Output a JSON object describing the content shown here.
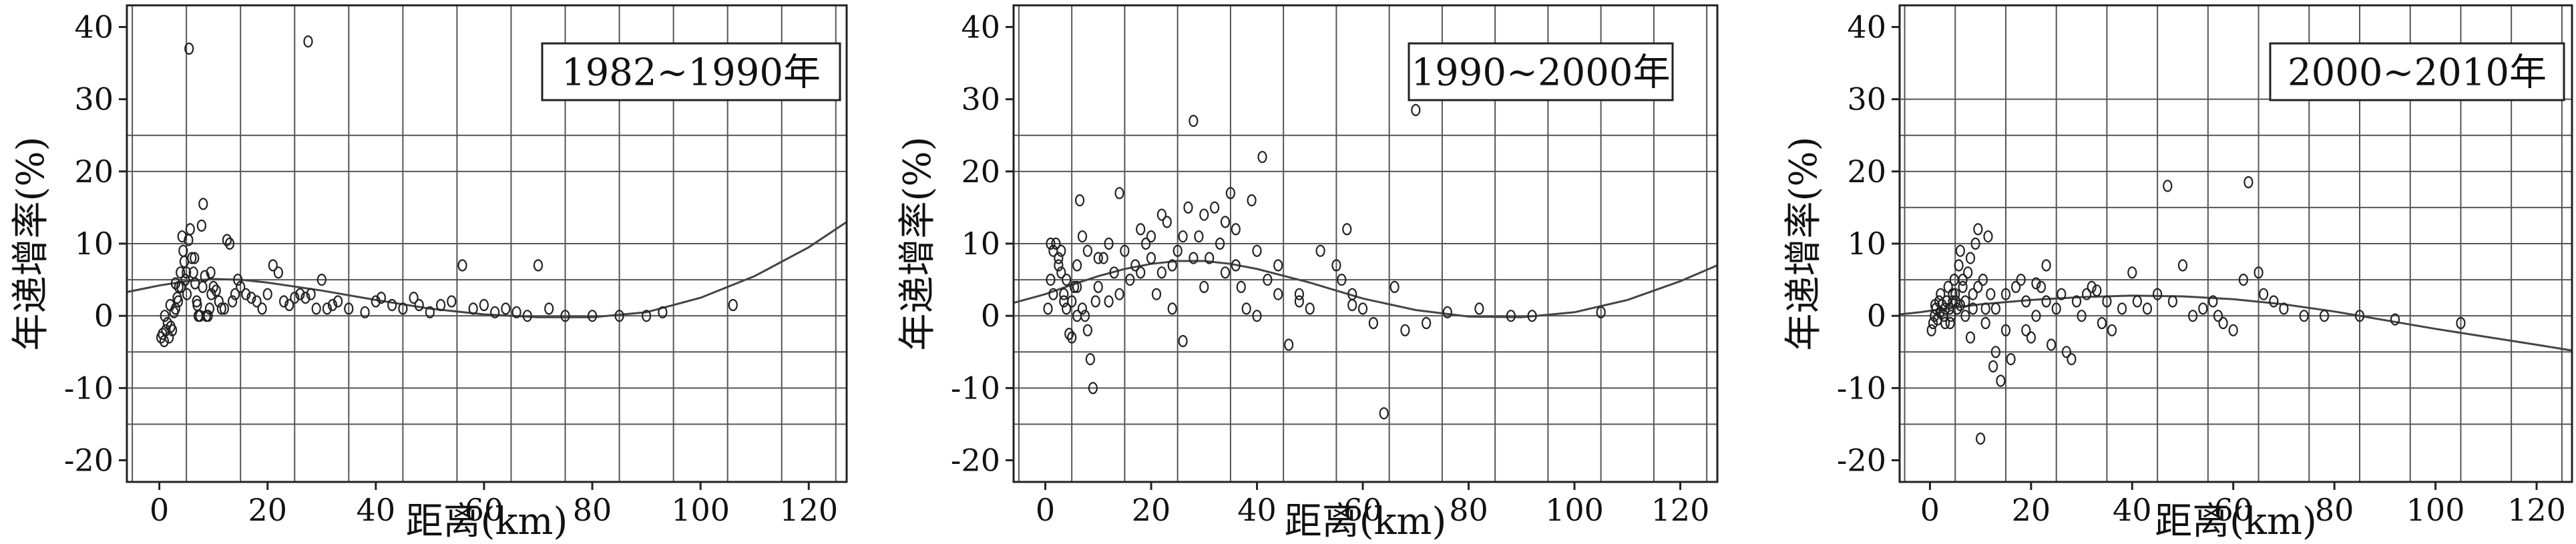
{
  "chart_data": [
    {
      "type": "scatter",
      "legend_label": "1982~1990年",
      "xlabel": "距离(km)",
      "ylabel": "年递增率(%)",
      "xlim": [
        -6,
        127
      ],
      "ylim": [
        -23,
        43
      ],
      "xticks": [
        0,
        20,
        40,
        60,
        80,
        100,
        120
      ],
      "yticks": [
        -20,
        -10,
        0,
        10,
        20,
        30,
        40
      ],
      "x_grid": [
        -5,
        5,
        15,
        25,
        35,
        45,
        55,
        65,
        75,
        85,
        95,
        105,
        115,
        125
      ],
      "y_grid": [
        -15,
        -10,
        -5,
        0,
        5,
        10,
        20,
        25
      ],
      "points": [
        [
          0.3,
          -3
        ],
        [
          0.6,
          -2.5
        ],
        [
          0.9,
          -3.5
        ],
        [
          1.2,
          -2
        ],
        [
          1.5,
          -1
        ],
        [
          1.8,
          -3
        ],
        [
          2.1,
          -1.5
        ],
        [
          2.4,
          -2
        ],
        [
          2.7,
          0.5
        ],
        [
          3,
          1
        ],
        [
          3.3,
          2.5
        ],
        [
          3.6,
          4
        ],
        [
          3.9,
          6
        ],
        [
          4.2,
          11
        ],
        [
          4.4,
          9
        ],
        [
          4.6,
          7.5
        ],
        [
          4.8,
          5
        ],
        [
          5.1,
          3
        ],
        [
          5.4,
          10.5
        ],
        [
          5.7,
          12
        ],
        [
          6,
          8
        ],
        [
          6.3,
          6
        ],
        [
          6.6,
          4.5
        ],
        [
          6.9,
          2
        ],
        [
          7.2,
          0
        ],
        [
          7.5,
          0
        ],
        [
          7.8,
          12.5
        ],
        [
          8.1,
          15.5
        ],
        [
          8.4,
          5.5
        ],
        [
          8.7,
          0
        ],
        [
          9,
          0
        ],
        [
          9.3,
          1
        ],
        [
          9.6,
          3
        ],
        [
          10,
          4
        ],
        [
          10.5,
          3.5
        ],
        [
          11,
          2
        ],
        [
          11.5,
          1
        ],
        [
          12,
          1
        ],
        [
          12.5,
          10.5
        ],
        [
          13,
          10
        ],
        [
          13.5,
          2
        ],
        [
          14,
          3
        ],
        [
          14.5,
          5
        ],
        [
          15,
          4
        ],
        [
          16,
          3
        ],
        [
          17,
          2.5
        ],
        [
          18,
          2
        ],
        [
          19,
          1
        ],
        [
          20,
          3
        ],
        [
          21,
          7
        ],
        [
          22,
          6
        ],
        [
          23,
          2
        ],
        [
          24,
          1.5
        ],
        [
          25,
          2.5
        ],
        [
          26,
          3
        ],
        [
          27,
          2.5
        ],
        [
          28,
          3
        ],
        [
          29,
          1
        ],
        [
          30,
          5
        ],
        [
          31,
          1
        ],
        [
          32,
          1.5
        ],
        [
          33,
          2
        ],
        [
          35,
          1
        ],
        [
          38,
          0.5
        ],
        [
          40,
          2
        ],
        [
          41,
          2.5
        ],
        [
          43,
          1.5
        ],
        [
          45,
          1
        ],
        [
          47,
          2.5
        ],
        [
          48,
          1.5
        ],
        [
          50,
          0.5
        ],
        [
          52,
          1.5
        ],
        [
          54,
          2
        ],
        [
          56,
          7
        ],
        [
          58,
          1
        ],
        [
          60,
          1.5
        ],
        [
          62,
          0.5
        ],
        [
          64,
          1
        ],
        [
          66,
          0.5
        ],
        [
          68,
          0
        ],
        [
          70,
          7
        ],
        [
          72,
          1
        ],
        [
          75,
          0
        ],
        [
          80,
          0
        ],
        [
          85,
          0
        ],
        [
          90,
          0
        ],
        [
          93,
          0.5
        ],
        [
          106,
          1.5
        ],
        [
          5.5,
          37
        ],
        [
          27.5,
          38
        ],
        [
          3,
          4.5
        ],
        [
          5,
          6
        ],
        [
          6.5,
          8
        ],
        [
          8,
          4
        ],
        [
          4,
          4
        ],
        [
          2,
          1.5
        ],
        [
          1,
          0
        ],
        [
          3.5,
          2
        ],
        [
          7,
          1.5
        ],
        [
          9.5,
          6
        ]
      ],
      "trend": [
        [
          -6,
          3.3
        ],
        [
          -2,
          3.9
        ],
        [
          0,
          4.2
        ],
        [
          5,
          4.8
        ],
        [
          10,
          5.1
        ],
        [
          15,
          5.0
        ],
        [
          20,
          4.6
        ],
        [
          30,
          3.5
        ],
        [
          40,
          2.2
        ],
        [
          50,
          1.0
        ],
        [
          60,
          0.2
        ],
        [
          70,
          -0.2
        ],
        [
          80,
          -0.2
        ],
        [
          90,
          0.5
        ],
        [
          100,
          2.5
        ],
        [
          110,
          5.5
        ],
        [
          120,
          9.5
        ],
        [
          127,
          13
        ]
      ]
    },
    {
      "type": "scatter",
      "legend_label": "1990~2000年",
      "xlabel": "距离(km)",
      "ylabel": "年递增率(%)",
      "xlim": [
        -6,
        127
      ],
      "ylim": [
        -23,
        43
      ],
      "xticks": [
        0,
        20,
        40,
        60,
        80,
        100,
        120
      ],
      "yticks": [
        -20,
        -10,
        0,
        10,
        20,
        30,
        40
      ],
      "x_grid": [
        -5,
        5,
        15,
        25,
        35,
        45,
        55,
        65,
        75,
        85,
        95,
        105,
        115,
        125
      ],
      "y_grid": [
        -15,
        -10,
        -5,
        0,
        5,
        10,
        20,
        25
      ],
      "points": [
        [
          0.5,
          1
        ],
        [
          1,
          5
        ],
        [
          1.5,
          3
        ],
        [
          2,
          10
        ],
        [
          2.5,
          8
        ],
        [
          3,
          6
        ],
        [
          3.5,
          2
        ],
        [
          4,
          1
        ],
        [
          4.5,
          -2.5
        ],
        [
          5,
          -3
        ],
        [
          5.5,
          4
        ],
        [
          6,
          7
        ],
        [
          6.5,
          16
        ],
        [
          7,
          11
        ],
        [
          7.5,
          0
        ],
        [
          8,
          -2
        ],
        [
          8.5,
          -6
        ],
        [
          9,
          -10
        ],
        [
          9.5,
          2
        ],
        [
          10,
          4
        ],
        [
          11,
          8
        ],
        [
          12,
          10
        ],
        [
          13,
          6
        ],
        [
          14,
          17
        ],
        [
          15,
          9
        ],
        [
          16,
          5
        ],
        [
          17,
          7
        ],
        [
          18,
          12
        ],
        [
          19,
          10
        ],
        [
          20,
          8
        ],
        [
          21,
          3
        ],
        [
          22,
          6
        ],
        [
          23,
          13
        ],
        [
          24,
          1
        ],
        [
          25,
          9
        ],
        [
          26,
          -3.5
        ],
        [
          27,
          15
        ],
        [
          28,
          27
        ],
        [
          29,
          11
        ],
        [
          30,
          4
        ],
        [
          31,
          8
        ],
        [
          32,
          15
        ],
        [
          33,
          10
        ],
        [
          34,
          6
        ],
        [
          35,
          17
        ],
        [
          36,
          12
        ],
        [
          37,
          4
        ],
        [
          38,
          1
        ],
        [
          39,
          16
        ],
        [
          40,
          0
        ],
        [
          41,
          22
        ],
        [
          42,
          5
        ],
        [
          44,
          3
        ],
        [
          46,
          -4
        ],
        [
          48,
          3
        ],
        [
          50,
          1
        ],
        [
          52,
          9
        ],
        [
          55,
          7
        ],
        [
          57,
          12
        ],
        [
          58,
          3
        ],
        [
          60,
          1
        ],
        [
          62,
          -1
        ],
        [
          64,
          -13.5
        ],
        [
          66,
          4
        ],
        [
          68,
          -2
        ],
        [
          70,
          28.5
        ],
        [
          72,
          -1
        ],
        [
          76,
          0.5
        ],
        [
          82,
          1
        ],
        [
          88,
          0
        ],
        [
          92,
          0
        ],
        [
          105,
          0.5
        ],
        [
          3,
          9
        ],
        [
          4,
          5
        ],
        [
          5,
          2
        ],
        [
          6,
          0
        ],
        [
          7,
          1
        ],
        [
          10,
          8
        ],
        [
          12,
          2
        ],
        [
          14,
          3
        ],
        [
          18,
          6
        ],
        [
          20,
          11
        ],
        [
          22,
          14
        ],
        [
          24,
          7
        ],
        [
          26,
          11
        ],
        [
          28,
          8
        ],
        [
          30,
          14
        ],
        [
          34,
          13
        ],
        [
          36,
          7
        ],
        [
          40,
          9
        ],
        [
          44,
          7
        ],
        [
          48,
          2
        ],
        [
          56,
          5
        ],
        [
          58,
          1.5
        ],
        [
          1.5,
          9
        ],
        [
          2.5,
          7
        ],
        [
          3.5,
          3
        ],
        [
          1,
          10
        ],
        [
          6,
          4
        ],
        [
          8,
          9
        ]
      ],
      "trend": [
        [
          -6,
          1.8
        ],
        [
          -2,
          2.6
        ],
        [
          0,
          3.0
        ],
        [
          5,
          4.3
        ],
        [
          10,
          5.5
        ],
        [
          15,
          6.5
        ],
        [
          20,
          7.2
        ],
        [
          25,
          7.6
        ],
        [
          30,
          7.6
        ],
        [
          35,
          7.2
        ],
        [
          40,
          6.5
        ],
        [
          50,
          4.6
        ],
        [
          60,
          2.4
        ],
        [
          70,
          0.8
        ],
        [
          80,
          -0.1
        ],
        [
          90,
          -0.2
        ],
        [
          100,
          0.5
        ],
        [
          110,
          2.2
        ],
        [
          120,
          4.8
        ],
        [
          127,
          7
        ]
      ]
    },
    {
      "type": "scatter",
      "legend_label": "2000~2010年",
      "xlabel": "距离(km)",
      "ylabel": "年递增率(%)",
      "xlim": [
        -6,
        127
      ],
      "ylim": [
        -23,
        43
      ],
      "xticks": [
        0,
        20,
        40,
        60,
        80,
        100,
        120
      ],
      "yticks": [
        -20,
        -10,
        0,
        10,
        20,
        30,
        40
      ],
      "x_grid": [
        -5,
        5,
        15,
        25,
        35,
        45,
        55,
        65,
        75,
        85,
        95,
        105,
        115,
        125
      ],
      "y_grid": [
        -15,
        -10,
        -5,
        0,
        5,
        10,
        15,
        20,
        25,
        30
      ],
      "points": [
        [
          0.3,
          -2
        ],
        [
          0.6,
          -1
        ],
        [
          0.9,
          0
        ],
        [
          1.2,
          1
        ],
        [
          1.5,
          -0.5
        ],
        [
          1.8,
          2
        ],
        [
          2.1,
          3
        ],
        [
          2.4,
          1.5
        ],
        [
          2.7,
          0
        ],
        [
          3,
          -1
        ],
        [
          3.3,
          2
        ],
        [
          3.6,
          4
        ],
        [
          3.9,
          1
        ],
        [
          4.2,
          0
        ],
        [
          4.5,
          3
        ],
        [
          4.8,
          5
        ],
        [
          5.1,
          2
        ],
        [
          5.4,
          1
        ],
        [
          5.7,
          7
        ],
        [
          6,
          9
        ],
        [
          6.5,
          4
        ],
        [
          7,
          2
        ],
        [
          7.5,
          6
        ],
        [
          8,
          8
        ],
        [
          8.5,
          3
        ],
        [
          9,
          10
        ],
        [
          9.5,
          12
        ],
        [
          10,
          -17
        ],
        [
          10.5,
          5
        ],
        [
          11,
          1
        ],
        [
          11.5,
          11
        ],
        [
          12,
          3
        ],
        [
          12.5,
          -7
        ],
        [
          13,
          -5
        ],
        [
          14,
          -9
        ],
        [
          15,
          -2
        ],
        [
          16,
          -6
        ],
        [
          17,
          4
        ],
        [
          18,
          5
        ],
        [
          19,
          2
        ],
        [
          20,
          -3
        ],
        [
          21,
          0
        ],
        [
          22,
          4
        ],
        [
          23,
          7
        ],
        [
          24,
          -4
        ],
        [
          25,
          1
        ],
        [
          26,
          3
        ],
        [
          27,
          -5
        ],
        [
          28,
          -6
        ],
        [
          29,
          2
        ],
        [
          30,
          0
        ],
        [
          31,
          3
        ],
        [
          32,
          4
        ],
        [
          33,
          3.5
        ],
        [
          34,
          -1
        ],
        [
          35,
          2
        ],
        [
          36,
          -2
        ],
        [
          38,
          1
        ],
        [
          40,
          6
        ],
        [
          41,
          2
        ],
        [
          43,
          1
        ],
        [
          45,
          3
        ],
        [
          47,
          18
        ],
        [
          48,
          2
        ],
        [
          50,
          7
        ],
        [
          52,
          0
        ],
        [
          54,
          1
        ],
        [
          56,
          2
        ],
        [
          57,
          0
        ],
        [
          58,
          -1
        ],
        [
          60,
          -2
        ],
        [
          62,
          5
        ],
        [
          63,
          18.5
        ],
        [
          65,
          6
        ],
        [
          66,
          3
        ],
        [
          68,
          2
        ],
        [
          70,
          1
        ],
        [
          74,
          0
        ],
        [
          78,
          0
        ],
        [
          85,
          0
        ],
        [
          92,
          -0.5
        ],
        [
          105,
          -1
        ],
        [
          4,
          -1
        ],
        [
          5,
          3
        ],
        [
          6,
          1.5
        ],
        [
          7,
          0
        ],
        [
          8,
          -3
        ],
        [
          3,
          1
        ],
        [
          2,
          0.5
        ],
        [
          1,
          1.5
        ],
        [
          4.5,
          2
        ],
        [
          6.5,
          5
        ],
        [
          8.5,
          1
        ],
        [
          9.5,
          4
        ],
        [
          11,
          -1
        ],
        [
          13,
          1
        ],
        [
          15,
          3
        ],
        [
          19,
          -2
        ],
        [
          21,
          4.5
        ],
        [
          23,
          2
        ]
      ],
      "trend": [
        [
          -6,
          0.2
        ],
        [
          -2,
          0.5
        ],
        [
          0,
          0.7
        ],
        [
          10,
          1.6
        ],
        [
          20,
          2.2
        ],
        [
          30,
          2.6
        ],
        [
          40,
          2.8
        ],
        [
          50,
          2.7
        ],
        [
          60,
          2.3
        ],
        [
          70,
          1.6
        ],
        [
          80,
          0.6
        ],
        [
          90,
          -0.6
        ],
        [
          100,
          -1.8
        ],
        [
          110,
          -2.9
        ],
        [
          120,
          -4.0
        ],
        [
          127,
          -4.8
        ]
      ]
    }
  ]
}
